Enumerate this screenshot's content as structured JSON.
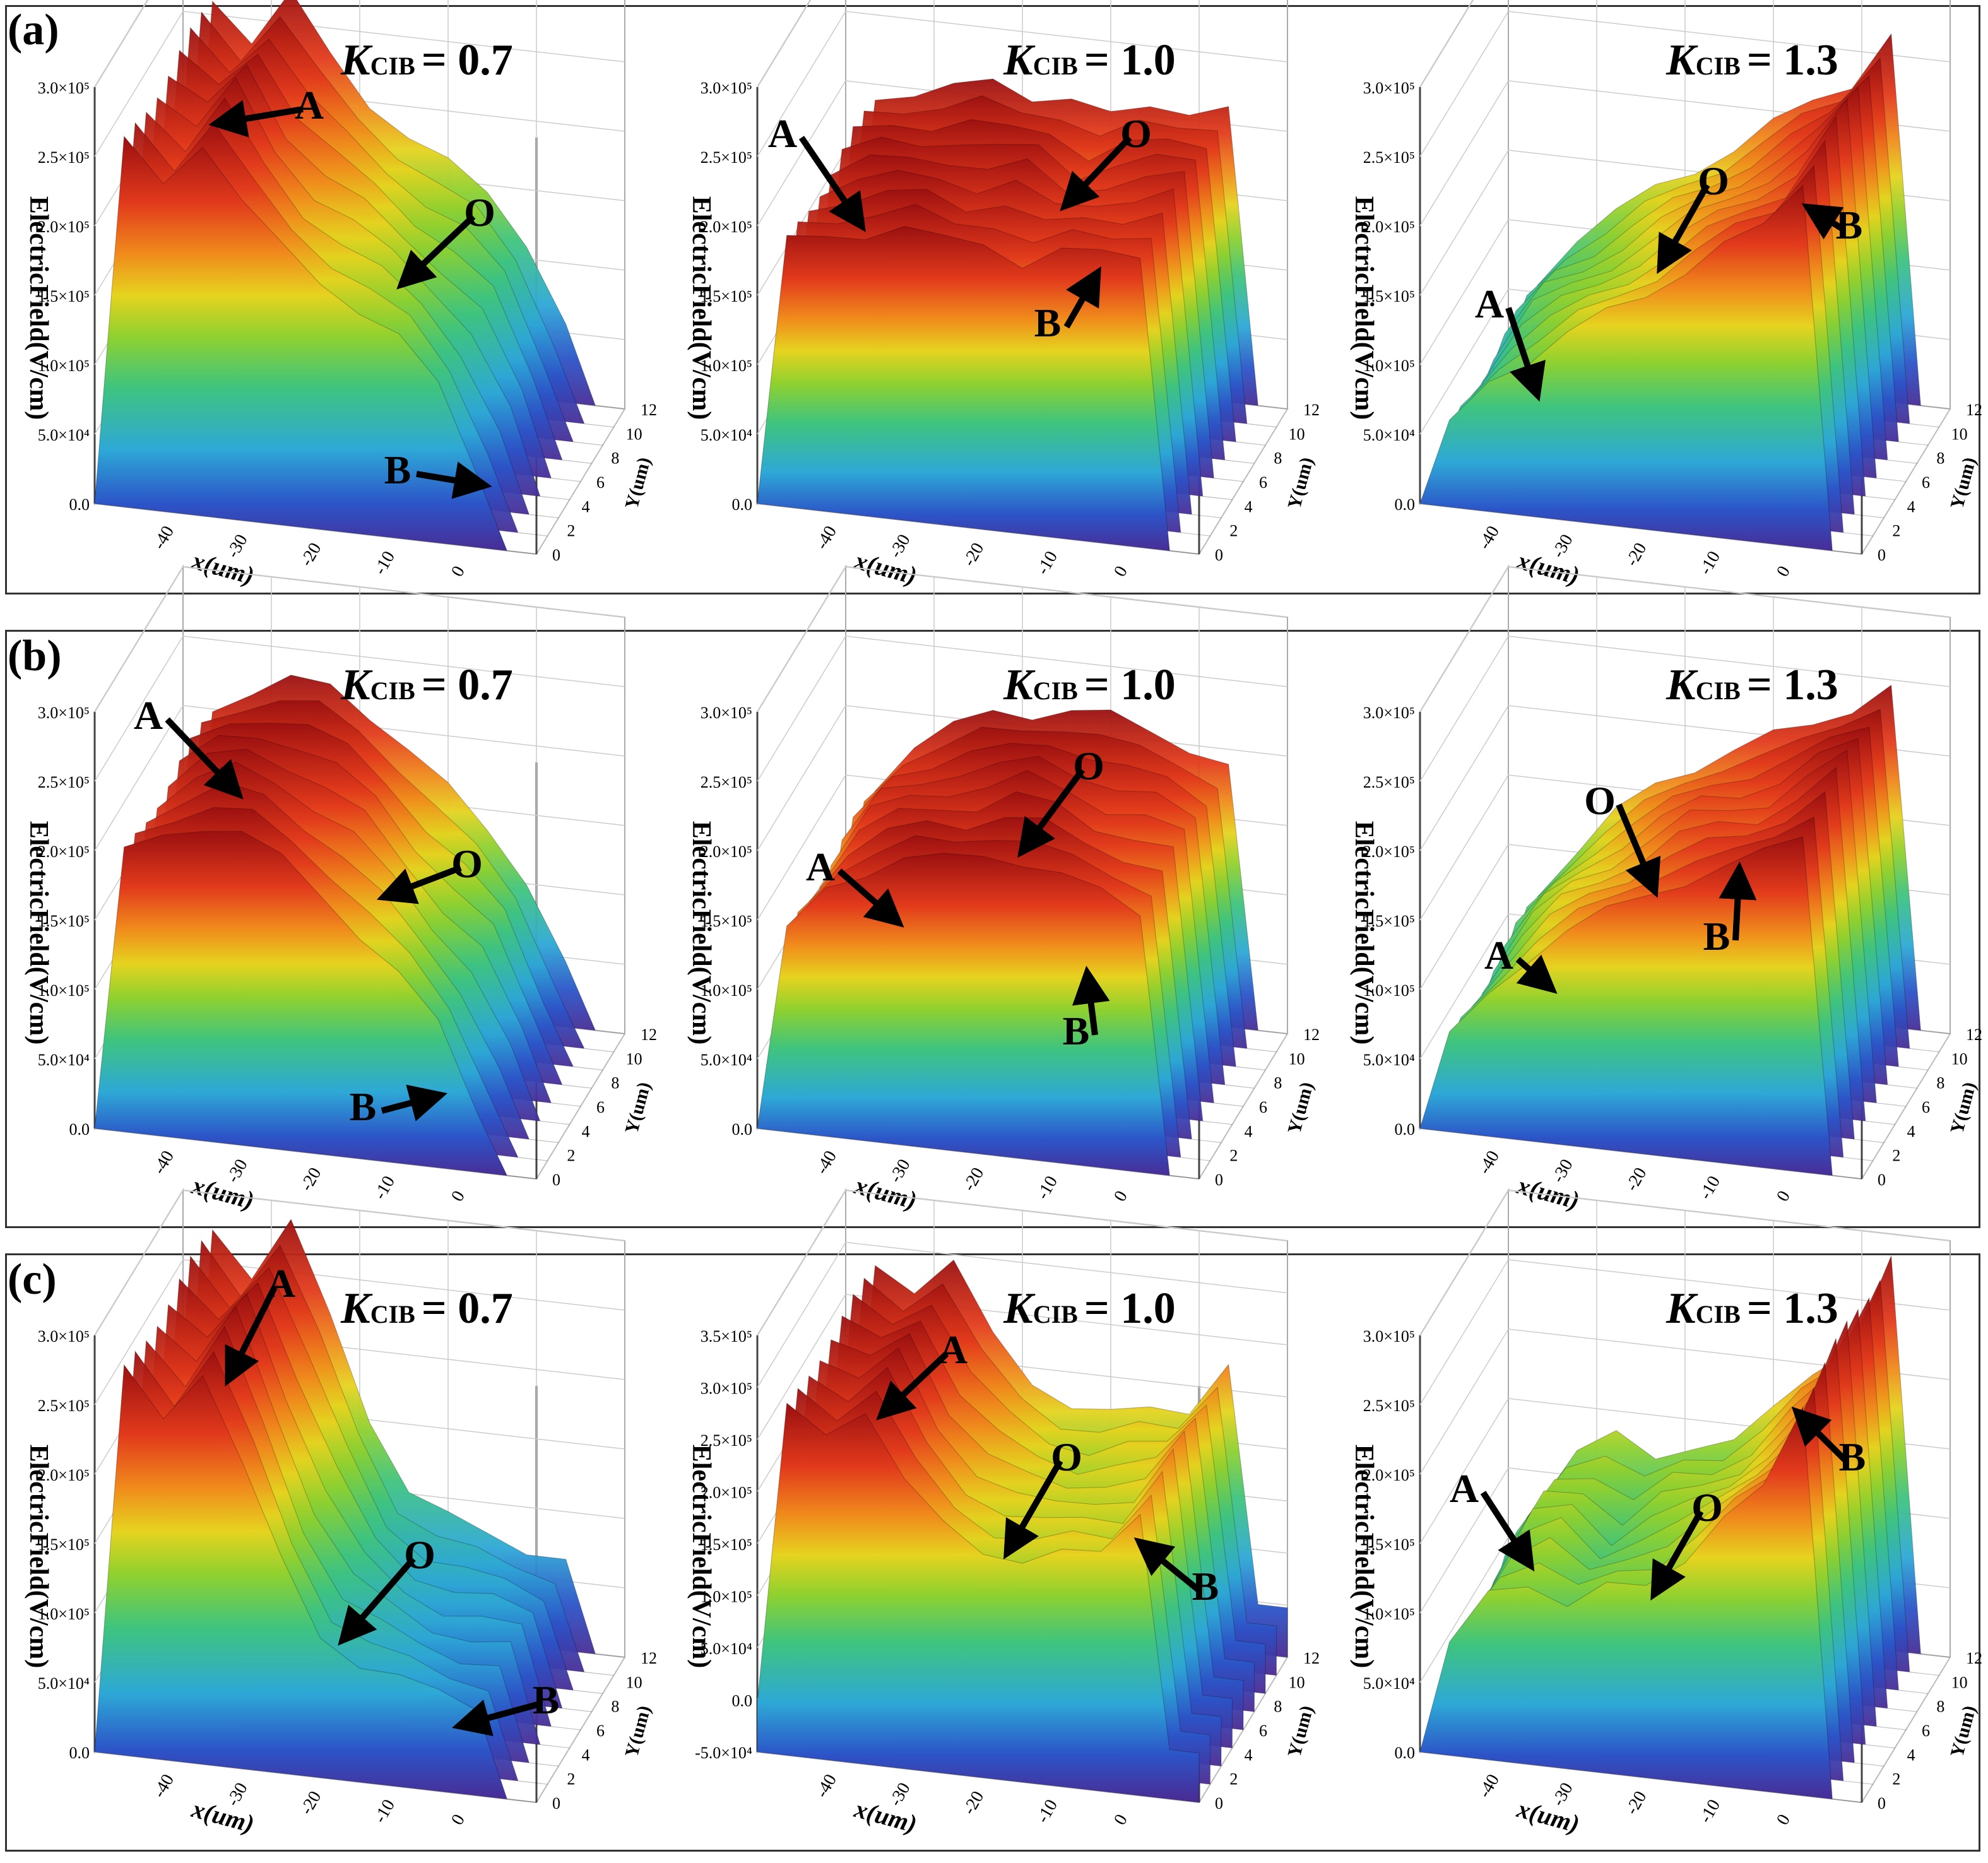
{
  "figure": {
    "rows": [
      {
        "label": "(a)",
        "panels": [
          {
            "k_symbol": "K",
            "k_sub": "CIB",
            "k_value": "= 0.7",
            "z_ticks": [
              "3.0×10⁵",
              "2.5×10⁵",
              "2.0×10⁵",
              "1.5×10⁵",
              "1.0×10⁵",
              "5.0×10⁴",
              "0.0"
            ],
            "annotations": [
              {
                "text": "A"
              },
              {
                "text": "O"
              },
              {
                "text": "B"
              }
            ]
          },
          {
            "k_symbol": "K",
            "k_sub": "CIB",
            "k_value": "= 1.0",
            "z_ticks": [
              "3.0×10⁵",
              "2.5×10⁵",
              "2.0×10⁵",
              "1.5×10⁵",
              "1.0×10⁵",
              "5.0×10⁴",
              "0.0"
            ],
            "annotations": [
              {
                "text": "A"
              },
              {
                "text": "O"
              },
              {
                "text": "B"
              }
            ]
          },
          {
            "k_symbol": "K",
            "k_sub": "CIB",
            "k_value": "= 1.3",
            "z_ticks": [
              "3.0×10⁵",
              "2.5×10⁵",
              "2.0×10⁵",
              "1.5×10⁵",
              "1.0×10⁵",
              "5.0×10⁴",
              "0.0"
            ],
            "annotations": [
              {
                "text": "A"
              },
              {
                "text": "O"
              },
              {
                "text": "B"
              }
            ]
          }
        ]
      },
      {
        "label": "(b)",
        "panels": [
          {
            "k_symbol": "K",
            "k_sub": "CIB",
            "k_value": "= 0.7",
            "z_ticks": [
              "3.0×10⁵",
              "2.5×10⁵",
              "2.0×10⁵",
              "1.5×10⁵",
              "1.0×10⁵",
              "5.0×10⁴",
              "0.0"
            ],
            "annotations": [
              {
                "text": "A"
              },
              {
                "text": "O"
              },
              {
                "text": "B"
              }
            ]
          },
          {
            "k_symbol": "K",
            "k_sub": "CIB",
            "k_value": "= 1.0",
            "z_ticks": [
              "3.0×10⁵",
              "2.5×10⁵",
              "2.0×10⁵",
              "1.5×10⁵",
              "1.0×10⁵",
              "5.0×10⁴",
              "0.0"
            ],
            "annotations": [
              {
                "text": "A"
              },
              {
                "text": "O"
              },
              {
                "text": "B"
              }
            ]
          },
          {
            "k_symbol": "K",
            "k_sub": "CIB",
            "k_value": "= 1.3",
            "z_ticks": [
              "3.0×10⁵",
              "2.5×10⁵",
              "2.0×10⁵",
              "1.5×10⁵",
              "1.0×10⁵",
              "5.0×10⁴",
              "0.0"
            ],
            "annotations": [
              {
                "text": "O"
              },
              {
                "text": "A"
              },
              {
                "text": "B"
              }
            ]
          }
        ]
      },
      {
        "label": "(c)",
        "panels": [
          {
            "k_symbol": "K",
            "k_sub": "CIB",
            "k_value": "= 0.7",
            "z_ticks": [
              "3.0×10⁵",
              "2.5×10⁵",
              "2.0×10⁵",
              "1.5×10⁵",
              "1.0×10⁵",
              "5.0×10⁴",
              "0.0"
            ],
            "annotations": [
              {
                "text": "A"
              },
              {
                "text": "O"
              },
              {
                "text": "B"
              }
            ]
          },
          {
            "k_symbol": "K",
            "k_sub": "CIB",
            "k_value": "= 1.0",
            "z_ticks": [
              "3.5×10⁵",
              "3.0×10⁵",
              "2.5×10⁵",
              "2.0×10⁵",
              "1.5×10⁵",
              "1.0×10⁵",
              "5.0×10⁴",
              "0.0",
              "-5.0×10⁴"
            ],
            "annotations": [
              {
                "text": "A"
              },
              {
                "text": "O"
              },
              {
                "text": "B"
              }
            ]
          },
          {
            "k_symbol": "K",
            "k_sub": "CIB",
            "k_value": "= 1.3",
            "z_ticks": [
              "3.0×10⁵",
              "2.5×10⁵",
              "2.0×10⁵",
              "1.5×10⁵",
              "1.0×10⁵",
              "5.0×10⁴",
              "0.0"
            ],
            "annotations": [
              {
                "text": "A"
              },
              {
                "text": "O"
              },
              {
                "text": "B"
              }
            ]
          }
        ]
      }
    ],
    "axis_labels": {
      "x": "x(um)",
      "y": "Y(um)",
      "z": "ElectricField(V/cm)"
    },
    "x_ticks": [
      "-40",
      "-30",
      "-20",
      "-10",
      "0"
    ],
    "y_ticks": [
      "0",
      "2",
      "4",
      "6",
      "8",
      "10",
      "12"
    ]
  },
  "chart_data": [
    {
      "type": "surface",
      "row": "(a)",
      "panel": "K_CIB = 0.7",
      "title": "KCIB = 0.7",
      "xlabel": "x(um)",
      "ylabel": "Y(um)",
      "zlabel": "ElectricField(V/cm)",
      "xlim": [
        -45,
        0
      ],
      "ylim": [
        0,
        12
      ],
      "zlim": [
        0,
        300000
      ],
      "profile_x": [
        -45,
        -42,
        -38,
        -34,
        -30,
        -26,
        -22,
        -18,
        -14,
        -10,
        -6,
        -3,
        0
      ],
      "profile_z": [
        0,
        275000,
        250000,
        285000,
        240000,
        210000,
        190000,
        170000,
        150000,
        120000,
        60000,
        0,
        0
      ]
    },
    {
      "type": "surface",
      "row": "(a)",
      "panel": "K_CIB = 1.0",
      "title": "KCIB = 1.0",
      "xlabel": "x(um)",
      "ylabel": "Y(um)",
      "zlabel": "ElectricField(V/cm)",
      "xlim": [
        -45,
        0
      ],
      "ylim": [
        0,
        12
      ],
      "zlim": [
        0,
        300000
      ],
      "profile_x": [
        -45,
        -42,
        -38,
        -34,
        -30,
        -26,
        -22,
        -18,
        -14,
        -10,
        -6,
        -3,
        0
      ],
      "profile_z": [
        0,
        200000,
        210000,
        215000,
        220000,
        215000,
        220000,
        205000,
        215000,
        220000,
        225000,
        0,
        0
      ]
    },
    {
      "type": "surface",
      "row": "(a)",
      "panel": "K_CIB = 1.3",
      "title": "KCIB = 1.3",
      "xlabel": "x(um)",
      "ylabel": "Y(um)",
      "zlabel": "ElectricField(V/cm)",
      "xlim": [
        -45,
        0
      ],
      "ylim": [
        0,
        12
      ],
      "zlim": [
        0,
        300000
      ],
      "profile_x": [
        -45,
        -42,
        -38,
        -34,
        -30,
        -26,
        -22,
        -18,
        -14,
        -10,
        -6,
        -3,
        0
      ],
      "profile_z": [
        0,
        60000,
        100000,
        120000,
        140000,
        160000,
        180000,
        200000,
        220000,
        240000,
        280000,
        0,
        0
      ]
    },
    {
      "type": "surface",
      "row": "(b)",
      "panel": "K_CIB = 0.7",
      "title": "KCIB = 0.7",
      "xlabel": "x(um)",
      "ylabel": "Y(um)",
      "zlabel": "ElectricField(V/cm)",
      "xlim": [
        -45,
        0
      ],
      "ylim": [
        0,
        12
      ],
      "zlim": [
        0,
        300000
      ],
      "profile_x": [
        -45,
        -42,
        -38,
        -34,
        -30,
        -26,
        -22,
        -18,
        -14,
        -10,
        -6,
        -3,
        0
      ],
      "profile_z": [
        0,
        210000,
        230000,
        240000,
        235000,
        220000,
        200000,
        170000,
        140000,
        110000,
        50000,
        0,
        0
      ]
    },
    {
      "type": "surface",
      "row": "(b)",
      "panel": "K_CIB = 1.0",
      "title": "KCIB = 1.0",
      "xlabel": "x(um)",
      "ylabel": "Y(um)",
      "zlabel": "ElectricField(V/cm)",
      "xlim": [
        -45,
        0
      ],
      "ylim": [
        0,
        12
      ],
      "zlim": [
        0,
        300000
      ],
      "profile_x": [
        -45,
        -42,
        -38,
        -34,
        -30,
        -26,
        -22,
        -18,
        -14,
        -10,
        -6,
        -3,
        0
      ],
      "profile_z": [
        0,
        150000,
        190000,
        205000,
        215000,
        220000,
        230000,
        225000,
        215000,
        210000,
        200000,
        0,
        0
      ]
    },
    {
      "type": "surface",
      "row": "(b)",
      "panel": "K_CIB = 1.3",
      "title": "KCIB = 1.3",
      "xlabel": "x(um)",
      "ylabel": "Y(um)",
      "zlabel": "ElectricField(V/cm)",
      "xlim": [
        -45,
        0
      ],
      "ylim": [
        0,
        12
      ],
      "zlim": [
        0,
        300000
      ],
      "profile_x": [
        -45,
        -42,
        -38,
        -34,
        -30,
        -26,
        -22,
        -18,
        -14,
        -10,
        -6,
        -3,
        0
      ],
      "profile_z": [
        0,
        70000,
        110000,
        140000,
        160000,
        180000,
        200000,
        210000,
        220000,
        240000,
        260000,
        0,
        0
      ]
    },
    {
      "type": "surface",
      "row": "(c)",
      "panel": "K_CIB = 0.7",
      "title": "KCIB = 0.7",
      "xlabel": "x(um)",
      "ylabel": "Y(um)",
      "zlabel": "ElectricField(V/cm)",
      "xlim": [
        -45,
        0
      ],
      "ylim": [
        0,
        12
      ],
      "zlim": [
        0,
        300000
      ],
      "profile_x": [
        -45,
        -42,
        -38,
        -34,
        -30,
        -26,
        -22,
        -18,
        -14,
        -10,
        -6,
        -3,
        0
      ],
      "profile_z": [
        0,
        290000,
        260000,
        300000,
        230000,
        160000,
        110000,
        90000,
        80000,
        75000,
        70000,
        0,
        0
      ]
    },
    {
      "type": "surface",
      "row": "(c)",
      "panel": "K_CIB = 1.0",
      "title": "KCIB = 1.0",
      "xlabel": "x(um)",
      "ylabel": "Y(um)",
      "zlabel": "ElectricField(V/cm)",
      "xlim": [
        -45,
        0
      ],
      "ylim": [
        0,
        12
      ],
      "zlim": [
        -50000,
        350000
      ],
      "profile_x": [
        -45,
        -42,
        -38,
        -34,
        -30,
        -26,
        -22,
        -18,
        -14,
        -10,
        -6,
        -3,
        0
      ],
      "profile_z": [
        0,
        300000,
        280000,
        310000,
        240000,
        200000,
        180000,
        175000,
        185000,
        190000,
        240000,
        0,
        0
      ]
    },
    {
      "type": "surface",
      "row": "(c)",
      "panel": "K_CIB = 1.3",
      "title": "KCIB = 1.3",
      "xlabel": "x(um)",
      "ylabel": "Y(um)",
      "zlabel": "ElectricField(V/cm)",
      "xlim": [
        -45,
        0
      ],
      "ylim": [
        0,
        12
      ],
      "zlim": [
        0,
        300000
      ],
      "profile_x": [
        -45,
        -42,
        -38,
        -34,
        -30,
        -26,
        -22,
        -18,
        -14,
        -10,
        -6,
        -3,
        0
      ],
      "profile_z": [
        0,
        80000,
        130000,
        140000,
        120000,
        140000,
        150000,
        170000,
        200000,
        230000,
        300000,
        0,
        0
      ]
    }
  ],
  "colors": {
    "colormap": [
      "#4b2a92",
      "#2c54c8",
      "#2ea8d6",
      "#3fc47e",
      "#8fd12f",
      "#e6d31f",
      "#f08a1c",
      "#e23a1c",
      "#9b1010"
    ]
  }
}
